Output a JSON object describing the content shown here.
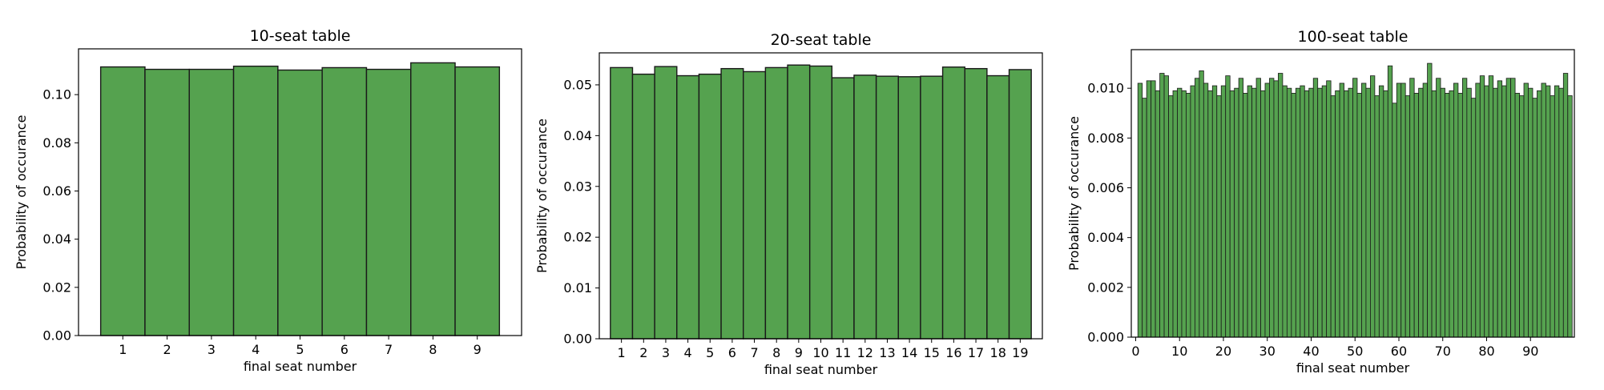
{
  "chart_data": [
    {
      "type": "bar",
      "title": "10-seat table",
      "xlabel": "final seat number",
      "ylabel": "Probability of occurance",
      "bar_color": "#55a24f",
      "edge_color": "#1a1a1a",
      "grid": false,
      "x": [
        1,
        2,
        3,
        4,
        5,
        6,
        7,
        8,
        9
      ],
      "values": [
        0.1115,
        0.1105,
        0.1105,
        0.1118,
        0.1102,
        0.1112,
        0.1105,
        0.1132,
        0.1115
      ],
      "xlim": [
        0,
        10
      ],
      "ylim": [
        0,
        0.119
      ],
      "xticks": [
        "1",
        "2",
        "3",
        "4",
        "5",
        "6",
        "7",
        "8",
        "9"
      ],
      "yticks": [
        "0.00",
        "0.02",
        "0.04",
        "0.06",
        "0.08",
        "0.10"
      ]
    },
    {
      "type": "bar",
      "title": "20-seat table",
      "xlabel": "final seat number",
      "ylabel": "Probability of occurance",
      "bar_color": "#55a24f",
      "edge_color": "#1a1a1a",
      "grid": false,
      "x": [
        1,
        2,
        3,
        4,
        5,
        6,
        7,
        8,
        9,
        10,
        11,
        12,
        13,
        14,
        15,
        16,
        17,
        18,
        19
      ],
      "values": [
        0.0534,
        0.0521,
        0.0536,
        0.0518,
        0.0521,
        0.0532,
        0.0526,
        0.0534,
        0.0539,
        0.0537,
        0.0514,
        0.0519,
        0.0517,
        0.0516,
        0.0517,
        0.0535,
        0.0532,
        0.0518,
        0.053
      ],
      "xlim": [
        0,
        20
      ],
      "ylim": [
        0,
        0.0563
      ],
      "xticks": [
        "1",
        "2",
        "3",
        "4",
        "5",
        "6",
        "7",
        "8",
        "9",
        "10",
        "11",
        "12",
        "13",
        "14",
        "15",
        "16",
        "17",
        "18",
        "19"
      ],
      "yticks": [
        "0.00",
        "0.01",
        "0.02",
        "0.03",
        "0.04",
        "0.05"
      ]
    },
    {
      "type": "bar",
      "title": "100-seat table",
      "xlabel": "final seat number",
      "ylabel": "Probability of occurance",
      "bar_color": "#55a24f",
      "edge_color": "#1a1a1a",
      "grid": false,
      "x": [
        1,
        2,
        3,
        4,
        5,
        6,
        7,
        8,
        9,
        10,
        11,
        12,
        13,
        14,
        15,
        16,
        17,
        18,
        19,
        20,
        21,
        22,
        23,
        24,
        25,
        26,
        27,
        28,
        29,
        30,
        31,
        32,
        33,
        34,
        35,
        36,
        37,
        38,
        39,
        40,
        41,
        42,
        43,
        44,
        45,
        46,
        47,
        48,
        49,
        50,
        51,
        52,
        53,
        54,
        55,
        56,
        57,
        58,
        59,
        60,
        61,
        62,
        63,
        64,
        65,
        66,
        67,
        68,
        69,
        70,
        71,
        72,
        73,
        74,
        75,
        76,
        77,
        78,
        79,
        80,
        81,
        82,
        83,
        84,
        85,
        86,
        87,
        88,
        89,
        90,
        91,
        92,
        93,
        94,
        95,
        96,
        97,
        98,
        99
      ],
      "values": [
        0.0102,
        0.0096,
        0.0103,
        0.0103,
        0.0099,
        0.0106,
        0.0105,
        0.0097,
        0.0099,
        0.01,
        0.0099,
        0.0098,
        0.0101,
        0.0104,
        0.0107,
        0.0102,
        0.0099,
        0.0101,
        0.0097,
        0.0101,
        0.0105,
        0.0099,
        0.01,
        0.0104,
        0.0098,
        0.0101,
        0.01,
        0.0104,
        0.0099,
        0.0102,
        0.0104,
        0.0103,
        0.0106,
        0.0101,
        0.01,
        0.0098,
        0.01,
        0.0101,
        0.0099,
        0.01,
        0.0104,
        0.01,
        0.0101,
        0.0103,
        0.0097,
        0.0099,
        0.0102,
        0.0099,
        0.01,
        0.0104,
        0.0098,
        0.0102,
        0.01,
        0.0105,
        0.0097,
        0.0101,
        0.0099,
        0.0109,
        0.0094,
        0.0102,
        0.0102,
        0.0097,
        0.0104,
        0.0098,
        0.01,
        0.0102,
        0.011,
        0.0099,
        0.0104,
        0.01,
        0.0098,
        0.0099,
        0.0102,
        0.0098,
        0.0104,
        0.01,
        0.0096,
        0.0102,
        0.0105,
        0.0101,
        0.0105,
        0.01,
        0.0103,
        0.0101,
        0.0104,
        0.0104,
        0.0098,
        0.0097,
        0.0102,
        0.01,
        0.0096,
        0.0099,
        0.0102,
        0.0101,
        0.0097,
        0.0101,
        0.01,
        0.0106,
        0.0097
      ],
      "xlim": [
        -1,
        100
      ],
      "ylim": [
        0,
        0.01155
      ],
      "xticks": [
        "0",
        "10",
        "20",
        "30",
        "40",
        "50",
        "60",
        "70",
        "80",
        "90"
      ],
      "yticks": [
        "0.000",
        "0.002",
        "0.004",
        "0.006",
        "0.008",
        "0.010"
      ]
    }
  ]
}
